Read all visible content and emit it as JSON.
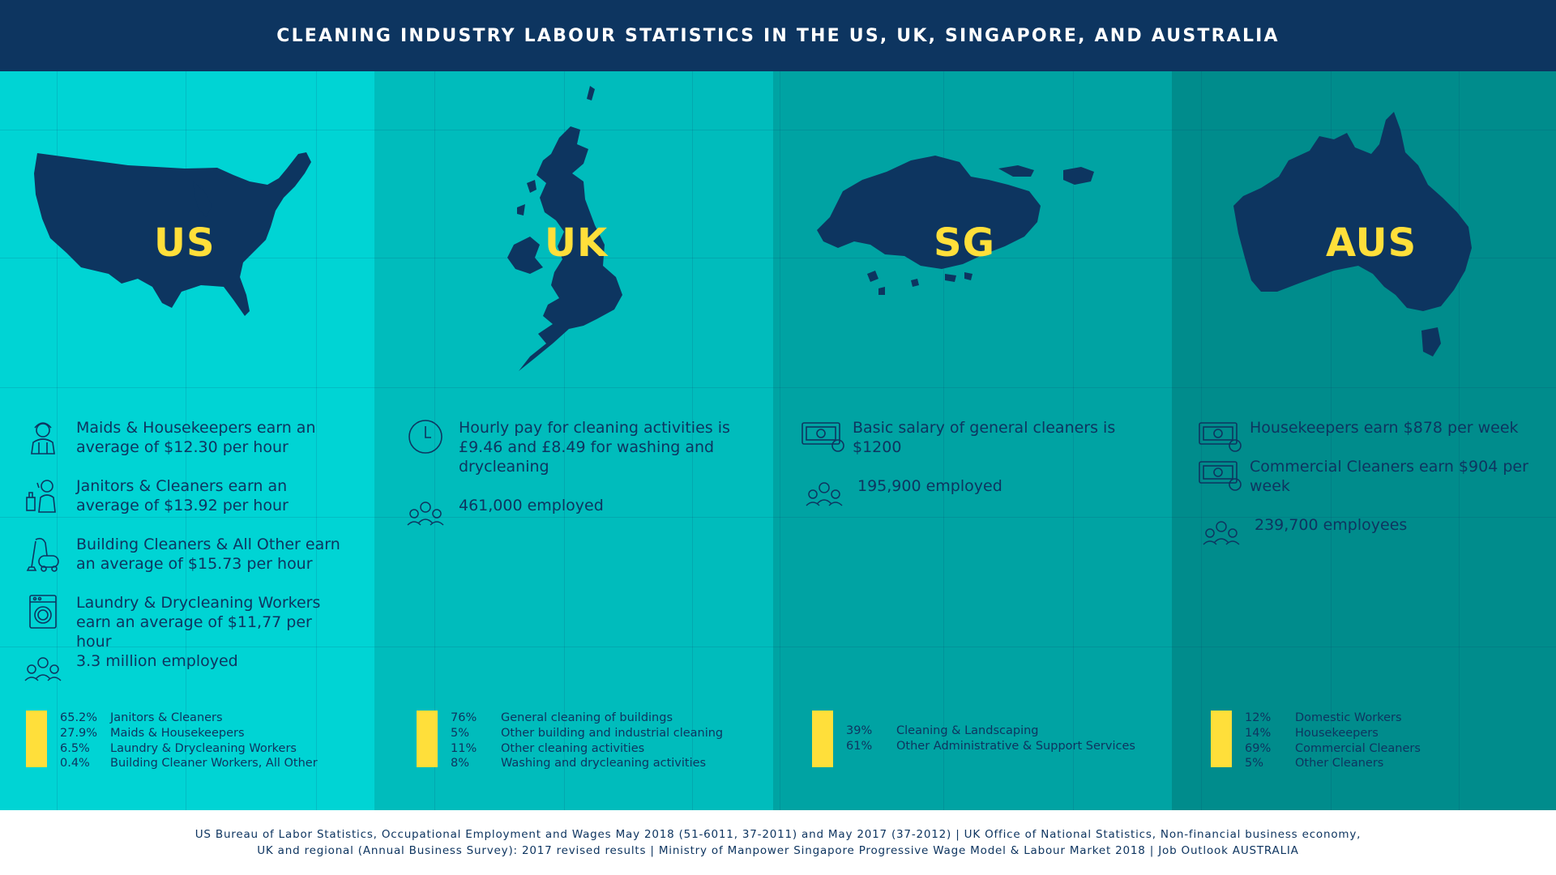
{
  "title": "CLEANING INDUSTRY LABOUR STATISTICS IN THE US, UK, SINGAPORE, AND AUSTRALIA",
  "colors": {
    "header": "#0d3560",
    "map": "#0d3560",
    "accent_yellow": "#ffdf3a",
    "panel_us": "#00d4d4",
    "panel_uk": "#00bcbc",
    "panel_sg": "#00a3a3",
    "panel_aus": "#008c8c"
  },
  "panels": {
    "us": {
      "code": "US",
      "stats": [
        {
          "icon": "maid-icon",
          "text": "Maids & Housekeepers earn an average of $12.30 per hour"
        },
        {
          "icon": "janitor-icon",
          "text": "Janitors & Cleaners earn an average of $13.92 per hour"
        },
        {
          "icon": "vacuum-icon",
          "text": "Building Cleaners & All Other earn an average of $15.73 per hour"
        },
        {
          "icon": "washing-machine-icon",
          "text": "Laundry & Drycleaning Workers earn an average of $11,77 per hour"
        },
        {
          "icon": "workers-group-icon",
          "text": "3.3 million employed"
        }
      ],
      "breakdown": [
        {
          "pct": "65.2%",
          "label": "Janitors & Cleaners"
        },
        {
          "pct": "27.9%",
          "label": "Maids & Housekeepers"
        },
        {
          "pct": "6.5%",
          "label": "Laundry & Drycleaning Workers"
        },
        {
          "pct": "0.4%",
          "label": "Building Cleaner Workers, All Other"
        }
      ]
    },
    "uk": {
      "code": "UK",
      "stats": [
        {
          "icon": "clock-icon",
          "text": "Hourly pay for cleaning activities is £9.46  and £8.49 for washing and drycleaning"
        },
        {
          "icon": "workers-group-icon",
          "text": "461,000 employed"
        }
      ],
      "breakdown": [
        {
          "pct": "76%",
          "label": "General cleaning of buildings"
        },
        {
          "pct": "5%",
          "label": "Other building and industrial cleaning"
        },
        {
          "pct": "11%",
          "label": "Other cleaning activities"
        },
        {
          "pct": "8%",
          "label": "Washing and drycleaning activities"
        }
      ]
    },
    "sg": {
      "code": "SG",
      "stats": [
        {
          "icon": "money-icon",
          "text": "Basic salary of general cleaners is $1200"
        },
        {
          "icon": "workers-group-icon",
          "text": "195,900 employed"
        }
      ],
      "breakdown": [
        {
          "pct": "39%",
          "label": "Cleaning & Landscaping"
        },
        {
          "pct": "61%",
          "label": "Other Administrative & Support Services"
        }
      ]
    },
    "aus": {
      "code": "AUS",
      "stats": [
        {
          "icon": "money-icon",
          "text": "Housekeepers earn $878 per week"
        },
        {
          "icon": "money-icon",
          "text": "Commercial Cleaners earn $904 per week"
        },
        {
          "icon": "workers-group-icon",
          "text": "239,700 employees"
        }
      ],
      "breakdown": [
        {
          "pct": "12%",
          "label": "Domestic Workers"
        },
        {
          "pct": "14%",
          "label": "Housekeepers"
        },
        {
          "pct": "69%",
          "label": "Commercial Cleaners"
        },
        {
          "pct": "5%",
          "label": "Other Cleaners"
        }
      ]
    }
  },
  "footer": {
    "line1": "US Bureau of Labor Statistics, Occupational Employment and Wages May 2018 (51-6011, 37-2011) and May 2017 (37-2012) | UK Office of National Statistics, Non-financial business economy,",
    "line2": "UK and regional (Annual Business Survey): 2017 revised results | Ministry of Manpower Singapore Progressive Wage Model & Labour Market 2018 | Job Outlook AUSTRALIA"
  }
}
